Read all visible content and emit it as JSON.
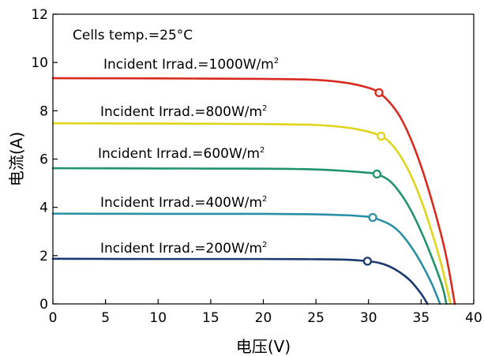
{
  "chart_data": {
    "type": "line",
    "title": "",
    "xlabel": "电压(V)",
    "ylabel": "电流(A)",
    "xlim": [
      0,
      40
    ],
    "ylim": [
      0,
      12
    ],
    "xticks": [
      0,
      5,
      10,
      15,
      20,
      25,
      30,
      35,
      40
    ],
    "yticks": [
      0,
      2,
      4,
      6,
      8,
      10,
      12
    ],
    "grid": false,
    "legend": "none",
    "annotations": [
      {
        "text": "Cells temp.=25°C"
      }
    ],
    "series": [
      {
        "name": "Incident Irrad.=1000W/m",
        "name_sup": "2",
        "color": "#d92a1f",
        "isc": 9.35,
        "voc": 38.2,
        "mpp": [
          31.0,
          8.75
        ],
        "points": [
          [
            0,
            9.35
          ],
          [
            10,
            9.34
          ],
          [
            20,
            9.32
          ],
          [
            25,
            9.28
          ],
          [
            28,
            9.15
          ],
          [
            30,
            8.95
          ],
          [
            31,
            8.75
          ],
          [
            32,
            8.35
          ],
          [
            33,
            7.75
          ],
          [
            34,
            6.85
          ],
          [
            35,
            5.7
          ],
          [
            36,
            4.3
          ],
          [
            37,
            2.7
          ],
          [
            37.6,
            1.5
          ],
          [
            38.2,
            0
          ]
        ]
      },
      {
        "name": "Incident Irrad.=800W/m",
        "name_sup": "2",
        "color": "#e1d41c",
        "isc": 7.48,
        "voc": 37.8,
        "mpp": [
          31.2,
          6.95
        ],
        "points": [
          [
            0,
            7.48
          ],
          [
            10,
            7.47
          ],
          [
            20,
            7.45
          ],
          [
            25,
            7.41
          ],
          [
            28,
            7.3
          ],
          [
            30,
            7.13
          ],
          [
            31.2,
            6.95
          ],
          [
            32,
            6.7
          ],
          [
            33,
            6.15
          ],
          [
            34,
            5.35
          ],
          [
            35,
            4.3
          ],
          [
            36,
            3.0
          ],
          [
            37,
            1.5
          ],
          [
            37.8,
            0
          ]
        ]
      },
      {
        "name": "Incident Irrad.=600W/m",
        "name_sup": "2",
        "color": "#21946a",
        "isc": 5.62,
        "voc": 37.4,
        "mpp": [
          30.8,
          5.38
        ],
        "points": [
          [
            0,
            5.62
          ],
          [
            10,
            5.61
          ],
          [
            20,
            5.6
          ],
          [
            25,
            5.57
          ],
          [
            28,
            5.5
          ],
          [
            30,
            5.43
          ],
          [
            30.8,
            5.38
          ],
          [
            32,
            5.1
          ],
          [
            33,
            4.6
          ],
          [
            34,
            3.9
          ],
          [
            35,
            3.0
          ],
          [
            36,
            1.95
          ],
          [
            37,
            0.75
          ],
          [
            37.4,
            0
          ]
        ]
      },
      {
        "name": "Incident Irrad.=400W/m",
        "name_sup": "2",
        "color": "#2a8fa6",
        "isc": 3.74,
        "voc": 36.8,
        "mpp": [
          30.4,
          3.58
        ],
        "points": [
          [
            0,
            3.74
          ],
          [
            10,
            3.73
          ],
          [
            20,
            3.73
          ],
          [
            25,
            3.71
          ],
          [
            28,
            3.67
          ],
          [
            30,
            3.61
          ],
          [
            30.4,
            3.58
          ],
          [
            32,
            3.3
          ],
          [
            33,
            2.95
          ],
          [
            34,
            2.4
          ],
          [
            35,
            1.7
          ],
          [
            36,
            0.85
          ],
          [
            36.8,
            0
          ]
        ]
      },
      {
        "name": "Incident Irrad.=200W/m",
        "name_sup": "2",
        "color": "#1b3a70",
        "isc": 1.87,
        "voc": 35.6,
        "mpp": [
          29.9,
          1.77
        ],
        "points": [
          [
            0,
            1.87
          ],
          [
            10,
            1.86
          ],
          [
            20,
            1.86
          ],
          [
            25,
            1.85
          ],
          [
            28,
            1.83
          ],
          [
            29.9,
            1.77
          ],
          [
            31,
            1.7
          ],
          [
            32,
            1.55
          ],
          [
            33,
            1.3
          ],
          [
            34,
            0.95
          ],
          [
            35,
            0.42
          ],
          [
            35.6,
            0
          ]
        ]
      }
    ]
  }
}
